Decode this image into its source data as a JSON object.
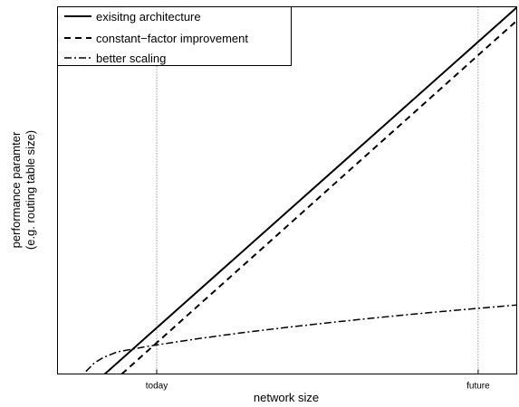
{
  "chart_data": {
    "type": "line",
    "xlabel": "network size",
    "ylabel_lines": [
      "performance paramter",
      "(e.g. routing table size)"
    ],
    "x_ticks": [
      {
        "label": "today",
        "value": 0.216
      },
      {
        "label": "future",
        "value": 0.916
      }
    ],
    "xlim": [
      0,
      1
    ],
    "ylim": [
      0,
      1
    ],
    "grid": "vertical dotted lines at x ticks",
    "legend_position": "top-left",
    "series": [
      {
        "name": "exisitng architecture",
        "style": "solid",
        "x": [
          0.103,
          1.0
        ],
        "y": [
          0.0,
          0.998
        ]
      },
      {
        "name": "constant−factor improvement",
        "style": "dashed",
        "x": [
          0.14,
          1.0
        ],
        "y": [
          0.0,
          0.962
        ]
      },
      {
        "name": "better scaling",
        "style": "dashdot",
        "x": [
          0.062,
          0.08,
          0.1,
          0.13,
          0.16,
          0.2,
          0.3,
          0.4,
          0.5,
          0.6,
          0.7,
          0.8,
          0.9,
          1.0
        ],
        "y": [
          0.007,
          0.03,
          0.045,
          0.06,
          0.067,
          0.076,
          0.095,
          0.112,
          0.127,
          0.141,
          0.154,
          0.166,
          0.177,
          0.188
        ]
      }
    ]
  }
}
